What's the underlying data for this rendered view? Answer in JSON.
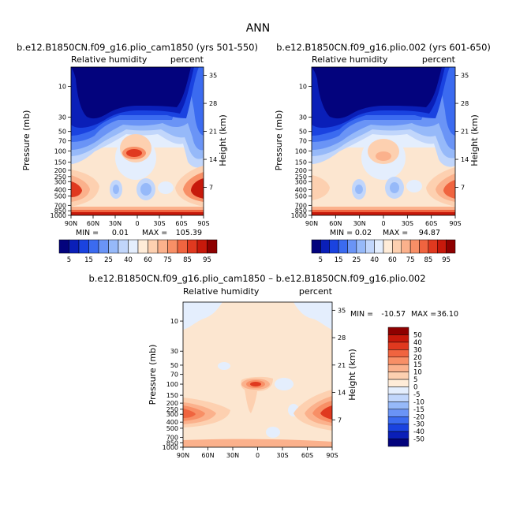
{
  "page": {
    "title": "ANN"
  },
  "colorbars": {
    "top_levels": [
      "5",
      "15",
      "25",
      "40",
      "60",
      "75",
      "85",
      "95"
    ],
    "top_colors": [
      "#03037d",
      "#0a1fb8",
      "#1a43e0",
      "#3b6bf0",
      "#6a94f6",
      "#96b9f9",
      "#c1d6fb",
      "#e4eefd",
      "#ffecd8",
      "#fdd0b0",
      "#fbb18c",
      "#f88f66",
      "#f0643f",
      "#e0391f",
      "#c7190b",
      "#8e0000"
    ],
    "diff_levels": [
      "50",
      "40",
      "30",
      "20",
      "15",
      "10",
      "5",
      "0",
      "-5",
      "-10",
      "-15",
      "-20",
      "-30",
      "-40",
      "-50"
    ],
    "diff_colors": [
      "#8e0000",
      "#c7190b",
      "#e0391f",
      "#f0643f",
      "#f88f66",
      "#fbb18c",
      "#fdd0b0",
      "#ffecd8",
      "#e4eefd",
      "#c1d6fb",
      "#96b9f9",
      "#6a94f6",
      "#3b6bf0",
      "#1a43e0",
      "#0a1fb8",
      "#03037d"
    ]
  },
  "chart_data": [
    {
      "type": "heatmap",
      "title": "b.e12.B1850CN.f09_g16.plio_cam1850 (yrs 501-550)",
      "field_label": "Relative humidity",
      "units": "percent",
      "ylabel": "Pressure (mb)",
      "ylabel_right": "Height (km)",
      "x_ticks": [
        "90N",
        "60N",
        "30N",
        "0",
        "30S",
        "60S",
        "90S"
      ],
      "y_ticks": [
        "10",
        "30",
        "50",
        "70",
        "100",
        "150",
        "200",
        "250",
        "300",
        "400",
        "500",
        "700",
        "850",
        "1000"
      ],
      "height_ticks": [
        "35",
        "28",
        "21",
        "14",
        "7"
      ],
      "min_label": "MIN =",
      "min_value": "0.01",
      "max_label": "MAX =",
      "max_value": "105.39"
    },
    {
      "type": "heatmap",
      "title": "b.e12.B1850CN.f09_g16.plio.002 (yrs 601-650)",
      "field_label": "Relative humidity",
      "units": "percent",
      "ylabel": "Pressure (mb)",
      "ylabel_right": "Height (km)",
      "x_ticks": [
        "90N",
        "60N",
        "30N",
        "0",
        "30S",
        "60S",
        "90S"
      ],
      "y_ticks": [
        "10",
        "30",
        "50",
        "70",
        "100",
        "150",
        "200",
        "250",
        "300",
        "400",
        "500",
        "700",
        "850",
        "1000"
      ],
      "height_ticks": [
        "35",
        "28",
        "21",
        "14",
        "7"
      ],
      "min_label": "MIN =",
      "min_value": "0.02",
      "max_label": "MAX =",
      "max_value": "94.87"
    },
    {
      "type": "heatmap",
      "title": "b.e12.B1850CN.f09_g16.plio_cam1850 – b.e12.B1850CN.f09_g16.plio.002",
      "field_label": "Relative humidity",
      "units": "percent",
      "ylabel": "Pressure (mb)",
      "ylabel_right": "Height (km)",
      "x_ticks": [
        "90N",
        "60N",
        "30N",
        "0",
        "30S",
        "60S",
        "90S"
      ],
      "y_ticks": [
        "10",
        "30",
        "50",
        "70",
        "100",
        "150",
        "200",
        "250",
        "300",
        "400",
        "500",
        "700",
        "850",
        "1000"
      ],
      "height_ticks": [
        "35",
        "28",
        "21",
        "14",
        "7"
      ],
      "min_label": "MIN =",
      "min_value": "-10.57",
      "max_label": "MAX =",
      "max_value": "36.10"
    }
  ]
}
